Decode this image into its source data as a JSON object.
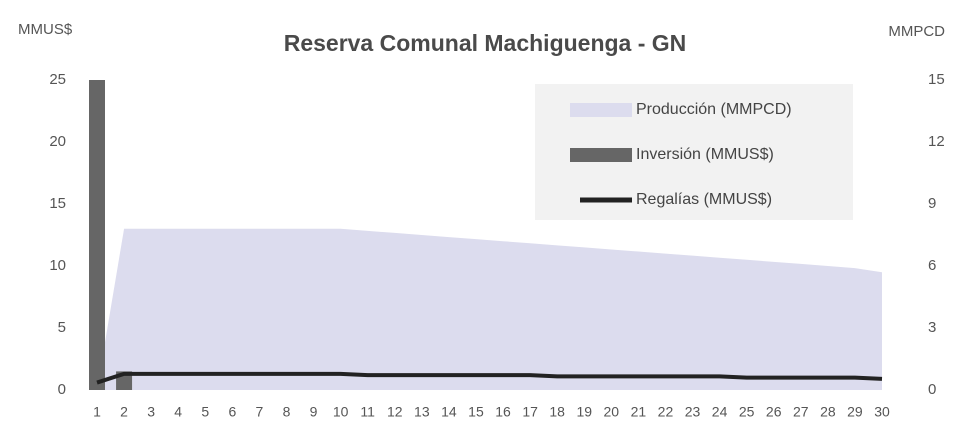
{
  "chart_data": {
    "type": "combo",
    "title": "Reserva Comunal Machiguenga - GN",
    "y_label": "MMUS$",
    "y2_label": "MMPCD",
    "x": [
      1,
      2,
      3,
      4,
      5,
      6,
      7,
      8,
      9,
      10,
      11,
      12,
      13,
      14,
      15,
      16,
      17,
      18,
      19,
      20,
      21,
      22,
      23,
      24,
      25,
      26,
      27,
      28,
      29,
      30
    ],
    "ylim": [
      0,
      25
    ],
    "yticks": [
      0,
      5,
      10,
      15,
      20,
      25
    ],
    "y2lim": [
      0,
      15
    ],
    "y2ticks": [
      0,
      3,
      6,
      9,
      12,
      15
    ],
    "legend": "upper right",
    "series": [
      {
        "name": "Producción (MMPCD)",
        "type": "area",
        "axis": "y2",
        "color": "#dcdcee",
        "values": [
          0,
          7.8,
          7.8,
          7.8,
          7.8,
          7.8,
          7.8,
          7.8,
          7.8,
          7.8,
          7.7,
          7.6,
          7.5,
          7.4,
          7.3,
          7.2,
          7.1,
          7.0,
          6.9,
          6.8,
          6.7,
          6.6,
          6.5,
          6.4,
          6.3,
          6.2,
          6.1,
          6.0,
          5.9,
          5.7
        ]
      },
      {
        "name": "Inversión (MMUS$)",
        "type": "bar",
        "color": "#666666",
        "values": [
          25,
          1.5,
          0,
          0,
          0,
          0,
          0,
          0,
          0,
          0,
          0,
          0,
          0,
          0,
          0,
          0,
          0,
          0,
          0,
          0,
          0,
          0,
          0,
          0,
          0,
          0,
          0,
          0,
          0,
          0
        ]
      },
      {
        "name": "Regalías (MMUS$)",
        "type": "line",
        "color": "#222222",
        "values": [
          0.6,
          1.3,
          1.3,
          1.3,
          1.3,
          1.3,
          1.3,
          1.3,
          1.3,
          1.3,
          1.2,
          1.2,
          1.2,
          1.2,
          1.2,
          1.2,
          1.2,
          1.1,
          1.1,
          1.1,
          1.1,
          1.1,
          1.1,
          1.1,
          1.0,
          1.0,
          1.0,
          1.0,
          1.0,
          0.9
        ]
      }
    ]
  }
}
